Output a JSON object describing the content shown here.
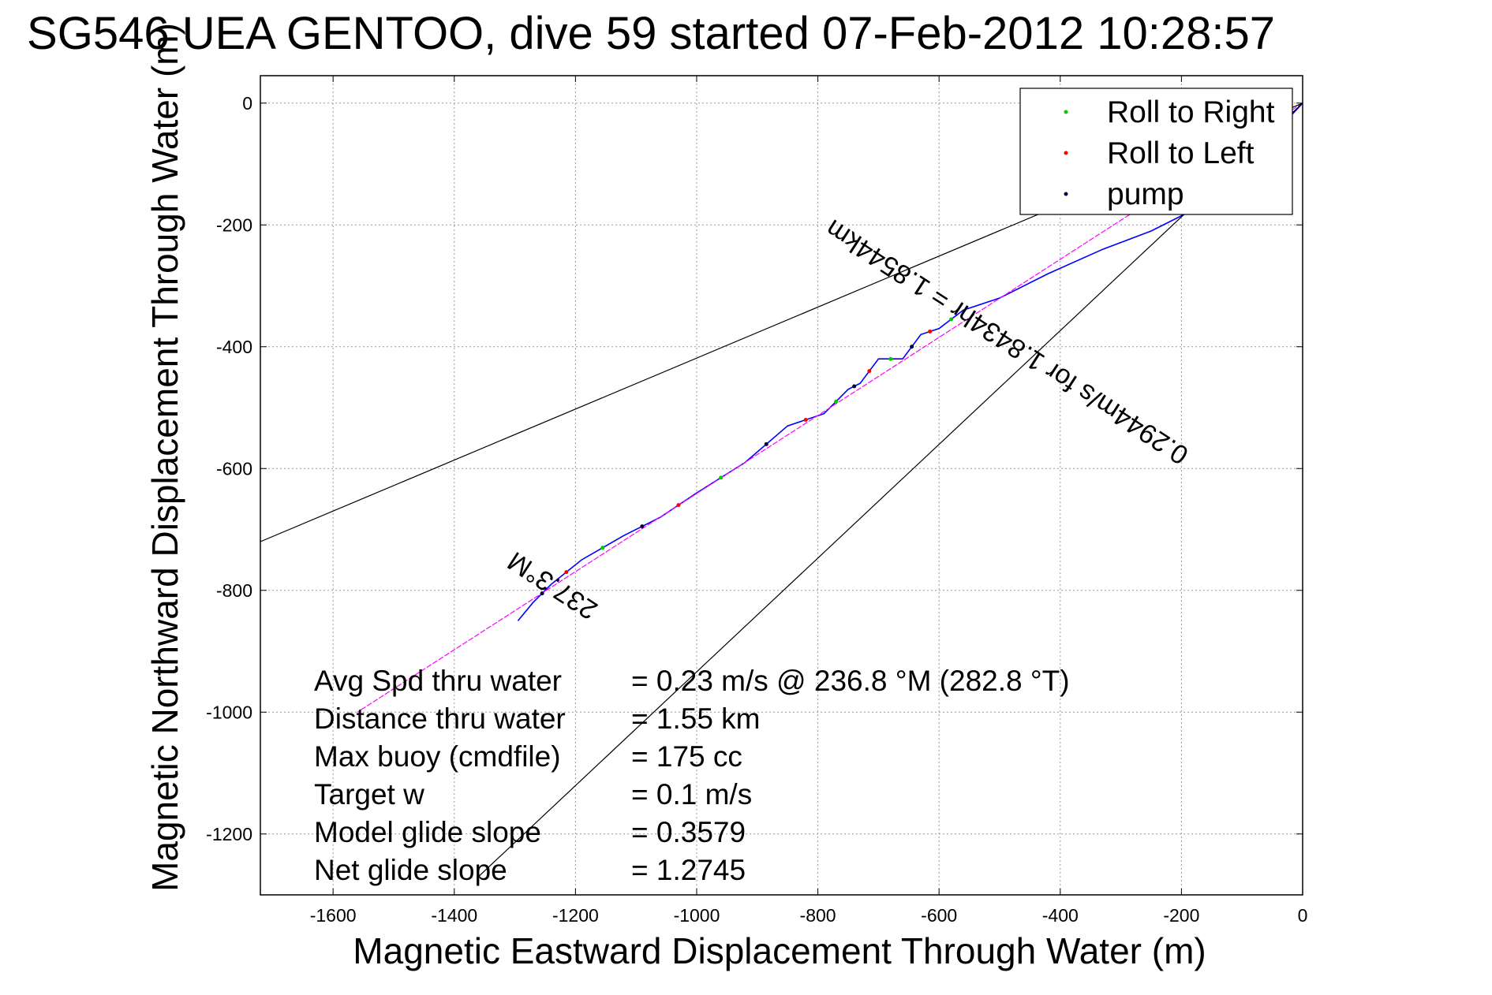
{
  "chart_data": {
    "type": "line",
    "title": "SG546 UEA GENTOO, dive 59 started 07-Feb-2012 10:28:57",
    "xlabel": "Magnetic Eastward Displacement Through Water (m)",
    "ylabel": "Magnetic Northward Displacement Through Water (m)",
    "xlim": [
      -1720,
      0
    ],
    "ylim": [
      -1300,
      45
    ],
    "grid": true,
    "x_ticks": [
      -1600,
      -1400,
      -1200,
      -1000,
      -800,
      -600,
      -400,
      -200,
      0
    ],
    "y_ticks": [
      0,
      -200,
      -400,
      -600,
      -800,
      -1000,
      -1200
    ],
    "legend": {
      "placement": "top-right",
      "entries": [
        {
          "label": "Roll to Right",
          "color": "#00cc00",
          "marker": "dot"
        },
        {
          "label": "Roll to Left",
          "color": "#ff0000",
          "marker": "dot"
        },
        {
          "label": "pump",
          "color": "#000040",
          "marker": "dot"
        }
      ]
    },
    "series": [
      {
        "style": "track",
        "color": "#0000ff",
        "x": [
          0,
          -150,
          -250,
          -330,
          -420,
          -500,
          -560,
          -600,
          -630,
          -660,
          -700,
          -730,
          -750,
          -790,
          -850,
          -920,
          -1000,
          -1060,
          -1120,
          -1190,
          -1240,
          -1270,
          -1295
        ],
        "y": [
          0,
          -160,
          -210,
          -240,
          -280,
          -320,
          -340,
          -370,
          -380,
          -420,
          -420,
          -460,
          -470,
          -510,
          -530,
          -590,
          -640,
          -680,
          -710,
          -750,
          -790,
          -820,
          -850
        ]
      },
      {
        "style": "heading",
        "color": "#ff00ff",
        "x": [
          0,
          -1560
        ],
        "y": [
          0,
          -1000
        ]
      },
      {
        "style": "cone",
        "color": "#000000",
        "x": [
          0,
          -1720
        ],
        "y": [
          0,
          -720
        ]
      },
      {
        "style": "cone",
        "color": "#000000",
        "x": [
          0,
          -1360
        ],
        "y": [
          0,
          -1270
        ]
      }
    ],
    "annotations": [
      {
        "text": "237.3°M",
        "x": -1230,
        "y": -780,
        "angle": 213
      },
      {
        "text": "0.2944m/s for 1.8434hr = 1.8544km",
        "x": -480,
        "y": -380,
        "angle": 213
      }
    ],
    "stats": [
      {
        "label": "Avg Spd thru water",
        "value": "=  0.23 m/s @ 236.8 °M (282.8 °T)"
      },
      {
        "label": "Distance thru water",
        "value": "=  1.55 km"
      },
      {
        "label": "Max buoy (cmdfile)",
        "value": "= 175 cc"
      },
      {
        "label": "Target w",
        "value": "= 0.1 m/s"
      },
      {
        "label": "Model glide slope",
        "value": "= 0.3579"
      },
      {
        "label": "Net glide slope",
        "value": "= 1.2745"
      }
    ]
  }
}
